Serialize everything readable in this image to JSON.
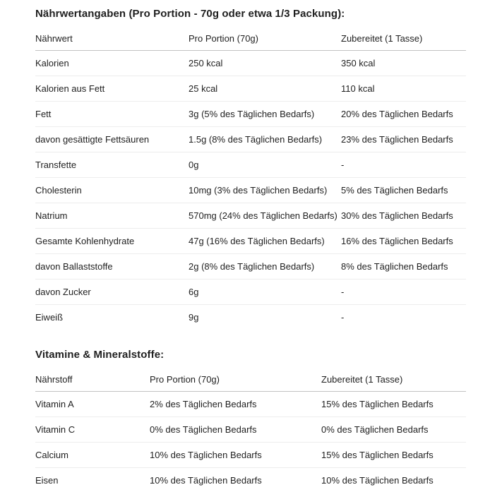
{
  "colors": {
    "text": "#1f1f1f",
    "header_divider": "#c2c2c2",
    "row_divider": "#ededed",
    "background": "#ffffff"
  },
  "section1": {
    "title": "Nährwertangaben (Pro Portion - 70g oder etwa 1/3 Packung):",
    "table": {
      "headers": [
        "Nährwert",
        "Pro Portion (70g)",
        "Zubereitet (1 Tasse)"
      ],
      "rows": [
        [
          "Kalorien",
          "250 kcal",
          "350 kcal"
        ],
        [
          "Kalorien aus Fett",
          "25 kcal",
          "110 kcal"
        ],
        [
          "Fett",
          "3g (5% des Täglichen Bedarfs)",
          "20% des Täglichen Bedarfs"
        ],
        [
          "davon gesättigte Fettsäuren",
          "1.5g (8% des Täglichen Bedarfs)",
          "23% des Täglichen Bedarfs"
        ],
        [
          "Transfette",
          "0g",
          "-"
        ],
        [
          "Cholesterin",
          "10mg (3% des Täglichen Bedarfs)",
          "5% des Täglichen Bedarfs"
        ],
        [
          "Natrium",
          "570mg (24% des Täglichen Bedarfs)",
          "30% des Täglichen Bedarfs"
        ],
        [
          "Gesamte Kohlenhydrate",
          "47g (16% des Täglichen Bedarfs)",
          "16% des Täglichen Bedarfs"
        ],
        [
          "davon Ballaststoffe",
          "2g (8% des Täglichen Bedarfs)",
          "8% des Täglichen Bedarfs"
        ],
        [
          "davon Zucker",
          "6g",
          "-"
        ],
        [
          "Eiweiß",
          "9g",
          "-"
        ]
      ]
    }
  },
  "section2": {
    "title": "Vitamine & Mineralstoffe:",
    "table": {
      "headers": [
        "Nährstoff",
        "Pro Portion (70g)",
        "Zubereitet (1 Tasse)"
      ],
      "rows": [
        [
          "Vitamin A",
          "2% des Täglichen Bedarfs",
          "15% des Täglichen Bedarfs"
        ],
        [
          "Vitamin C",
          "0% des Täglichen Bedarfs",
          "0% des Täglichen Bedarfs"
        ],
        [
          "Calcium",
          "10% des Täglichen Bedarfs",
          "15% des Täglichen Bedarfs"
        ],
        [
          "Eisen",
          "10% des Täglichen Bedarfs",
          "10% des Täglichen Bedarfs"
        ]
      ]
    }
  }
}
